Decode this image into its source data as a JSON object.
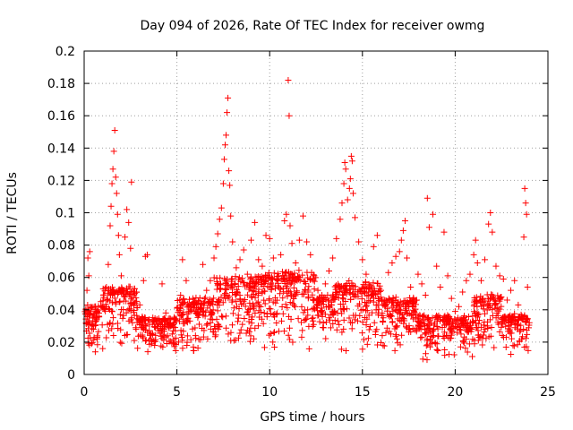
{
  "chart_data": {
    "type": "scatter",
    "title": "Day 094 of 2026, Rate Of TEC Index for receiver owmg",
    "xlabel": "GPS time / hours",
    "ylabel": "ROTI / TECUs",
    "xlim": [
      0,
      25
    ],
    "ylim": [
      0,
      0.2
    ],
    "x_ticks": [
      "0",
      "5",
      "10",
      "15",
      "20",
      "25"
    ],
    "y_ticks": [
      "0",
      "0.02",
      "0.04",
      "0.06",
      "0.08",
      "0.1",
      "0.12",
      "0.14",
      "0.16",
      "0.18",
      "0.2"
    ],
    "grid": true,
    "legend": "none",
    "marker": "plus",
    "colors": {
      "points": "#ff0000",
      "grid": "#a0a0a0",
      "axes": "#000000"
    },
    "series": [
      {
        "points": [
          [
            0.1,
            0.032
          ],
          [
            0.15,
            0.052
          ],
          [
            0.2,
            0.072
          ],
          [
            0.25,
            0.061
          ],
          [
            0.3,
            0.076
          ],
          [
            0.35,
            0.041
          ],
          [
            0.4,
            0.019
          ],
          [
            0.5,
            0.028
          ],
          [
            0.6,
            0.014
          ],
          [
            0.7,
            0.022
          ],
          [
            0.8,
            0.036
          ],
          [
            0.9,
            0.045
          ],
          [
            1.0,
            0.016
          ],
          [
            1.1,
            0.041
          ],
          [
            1.2,
            0.054
          ],
          [
            1.3,
            0.068
          ],
          [
            1.4,
            0.092
          ],
          [
            1.45,
            0.104
          ],
          [
            1.5,
            0.118
          ],
          [
            1.55,
            0.127
          ],
          [
            1.6,
            0.138
          ],
          [
            1.65,
            0.151
          ],
          [
            1.7,
            0.122
          ],
          [
            1.75,
            0.112
          ],
          [
            1.8,
            0.099
          ],
          [
            1.85,
            0.086
          ],
          [
            1.9,
            0.074
          ],
          [
            2.0,
            0.061
          ],
          [
            2.1,
            0.052
          ],
          [
            2.2,
            0.085
          ],
          [
            2.3,
            0.102
          ],
          [
            2.4,
            0.094
          ],
          [
            2.5,
            0.078
          ],
          [
            2.55,
            0.119
          ],
          [
            2.6,
            0.032
          ],
          [
            2.7,
            0.021
          ],
          [
            2.8,
            0.028
          ],
          [
            3.0,
            0.043
          ],
          [
            3.2,
            0.058
          ],
          [
            3.3,
            0.073
          ],
          [
            3.4,
            0.074
          ],
          [
            3.5,
            0.034
          ],
          [
            3.6,
            0.022
          ],
          [
            3.8,
            0.018
          ],
          [
            4.0,
            0.027
          ],
          [
            4.2,
            0.056
          ],
          [
            4.4,
            0.038
          ],
          [
            4.6,
            0.031
          ],
          [
            4.8,
            0.027
          ],
          [
            5.0,
            0.041
          ],
          [
            5.2,
            0.049
          ],
          [
            5.3,
            0.071
          ],
          [
            5.5,
            0.058
          ],
          [
            5.7,
            0.033
          ],
          [
            6.0,
            0.024
          ],
          [
            6.2,
            0.031
          ],
          [
            6.4,
            0.068
          ],
          [
            6.6,
            0.052
          ],
          [
            6.8,
            0.058
          ],
          [
            7.0,
            0.072
          ],
          [
            7.1,
            0.079
          ],
          [
            7.2,
            0.087
          ],
          [
            7.3,
            0.096
          ],
          [
            7.4,
            0.103
          ],
          [
            7.5,
            0.118
          ],
          [
            7.55,
            0.133
          ],
          [
            7.6,
            0.142
          ],
          [
            7.65,
            0.148
          ],
          [
            7.7,
            0.162
          ],
          [
            7.75,
            0.171
          ],
          [
            7.8,
            0.126
          ],
          [
            7.85,
            0.117
          ],
          [
            7.9,
            0.098
          ],
          [
            8.0,
            0.082
          ],
          [
            8.2,
            0.066
          ],
          [
            8.4,
            0.071
          ],
          [
            8.6,
            0.077
          ],
          [
            8.8,
            0.062
          ],
          [
            9.0,
            0.083
          ],
          [
            9.2,
            0.094
          ],
          [
            9.4,
            0.071
          ],
          [
            9.6,
            0.067
          ],
          [
            9.8,
            0.086
          ],
          [
            10.0,
            0.084
          ],
          [
            10.2,
            0.072
          ],
          [
            10.4,
            0.059
          ],
          [
            10.6,
            0.074
          ],
          [
            10.8,
            0.095
          ],
          [
            10.9,
            0.099
          ],
          [
            11.0,
            0.182
          ],
          [
            11.05,
            0.16
          ],
          [
            11.1,
            0.092
          ],
          [
            11.2,
            0.081
          ],
          [
            11.4,
            0.069
          ],
          [
            11.6,
            0.083
          ],
          [
            11.8,
            0.098
          ],
          [
            12.0,
            0.082
          ],
          [
            12.2,
            0.074
          ],
          [
            12.4,
            0.061
          ],
          [
            12.6,
            0.052
          ],
          [
            12.8,
            0.041
          ],
          [
            13.0,
            0.056
          ],
          [
            13.2,
            0.064
          ],
          [
            13.4,
            0.072
          ],
          [
            13.6,
            0.084
          ],
          [
            13.8,
            0.096
          ],
          [
            13.9,
            0.106
          ],
          [
            14.0,
            0.118
          ],
          [
            14.05,
            0.131
          ],
          [
            14.1,
            0.127
          ],
          [
            14.2,
            0.108
          ],
          [
            14.3,
            0.115
          ],
          [
            14.35,
            0.121
          ],
          [
            14.4,
            0.135
          ],
          [
            14.45,
            0.132
          ],
          [
            14.5,
            0.112
          ],
          [
            14.6,
            0.097
          ],
          [
            14.8,
            0.082
          ],
          [
            15.0,
            0.071
          ],
          [
            15.2,
            0.062
          ],
          [
            15.4,
            0.055
          ],
          [
            15.6,
            0.079
          ],
          [
            15.8,
            0.086
          ],
          [
            16.0,
            0.052
          ],
          [
            16.2,
            0.046
          ],
          [
            16.4,
            0.063
          ],
          [
            16.6,
            0.069
          ],
          [
            16.8,
            0.073
          ],
          [
            17.0,
            0.076
          ],
          [
            17.1,
            0.083
          ],
          [
            17.2,
            0.089
          ],
          [
            17.3,
            0.095
          ],
          [
            17.4,
            0.072
          ],
          [
            17.6,
            0.054
          ],
          [
            17.8,
            0.045
          ],
          [
            18.0,
            0.062
          ],
          [
            18.2,
            0.056
          ],
          [
            18.4,
            0.049
          ],
          [
            18.5,
            0.109
          ],
          [
            18.6,
            0.091
          ],
          [
            18.8,
            0.099
          ],
          [
            19.0,
            0.067
          ],
          [
            19.2,
            0.054
          ],
          [
            19.4,
            0.088
          ],
          [
            19.6,
            0.061
          ],
          [
            19.8,
            0.047
          ],
          [
            20.0,
            0.039
          ],
          [
            20.2,
            0.042
          ],
          [
            20.4,
            0.051
          ],
          [
            20.6,
            0.058
          ],
          [
            20.8,
            0.062
          ],
          [
            21.0,
            0.074
          ],
          [
            21.1,
            0.083
          ],
          [
            21.2,
            0.069
          ],
          [
            21.4,
            0.058
          ],
          [
            21.6,
            0.071
          ],
          [
            21.8,
            0.093
          ],
          [
            21.9,
            0.1
          ],
          [
            22.0,
            0.088
          ],
          [
            22.2,
            0.067
          ],
          [
            22.4,
            0.061
          ],
          [
            22.6,
            0.059
          ],
          [
            22.8,
            0.046
          ],
          [
            23.0,
            0.052
          ],
          [
            23.2,
            0.058
          ],
          [
            23.4,
            0.043
          ],
          [
            23.6,
            0.036
          ],
          [
            23.7,
            0.085
          ],
          [
            23.75,
            0.115
          ],
          [
            23.8,
            0.106
          ],
          [
            23.85,
            0.099
          ],
          [
            23.9,
            0.054
          ],
          [
            24.0,
            0.032
          ]
        ],
        "bands": [
          [
            0.0,
            1.0,
            0.01,
            0.044
          ],
          [
            1.0,
            2.9,
            0.012,
            0.055
          ],
          [
            2.9,
            5.0,
            0.01,
            0.036
          ],
          [
            5.0,
            7.0,
            0.008,
            0.048
          ],
          [
            7.0,
            9.5,
            0.01,
            0.062
          ],
          [
            9.5,
            12.5,
            0.01,
            0.065
          ],
          [
            12.5,
            13.5,
            0.012,
            0.05
          ],
          [
            13.5,
            16.0,
            0.008,
            0.058
          ],
          [
            16.0,
            18.0,
            0.01,
            0.048
          ],
          [
            18.0,
            21.0,
            0.006,
            0.037
          ],
          [
            21.0,
            22.5,
            0.01,
            0.05
          ],
          [
            22.5,
            24.0,
            0.01,
            0.038
          ]
        ]
      }
    ]
  }
}
